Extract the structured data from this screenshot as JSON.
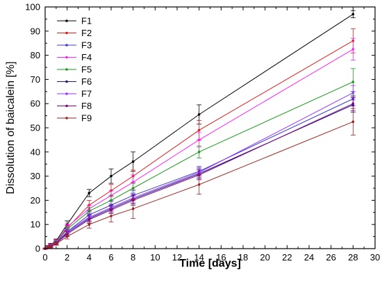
{
  "chart_data": {
    "type": "line",
    "title": "",
    "xlabel": "Time [days]",
    "ylabel": "Dissolution of baicalein [%]",
    "xlim": [
      0,
      30
    ],
    "ylim": [
      0,
      100
    ],
    "xticks": [
      0,
      2,
      4,
      6,
      8,
      10,
      12,
      14,
      16,
      18,
      20,
      22,
      24,
      26,
      28,
      30
    ],
    "yticks": [
      0,
      10,
      20,
      30,
      40,
      50,
      60,
      70,
      80,
      90,
      100
    ],
    "x": [
      0,
      0.25,
      0.5,
      1,
      2,
      4,
      6,
      8,
      14,
      28
    ],
    "grid": false,
    "legend_position": "top-left",
    "series": [
      {
        "name": "F1",
        "color": "#000000",
        "values": [
          0,
          0.8,
          1.6,
          3.2,
          10,
          23,
          30,
          36,
          55.5,
          97
        ],
        "errors": [
          0.2,
          0.5,
          0.6,
          0.8,
          1.5,
          1.5,
          3,
          4,
          4,
          1.5
        ]
      },
      {
        "name": "F2",
        "color": "#e41a1c",
        "values": [
          0,
          0.7,
          1.4,
          2.9,
          8.5,
          18,
          24,
          30,
          49,
          86
        ],
        "errors": [
          0.2,
          0.5,
          0.6,
          0.8,
          1.2,
          2,
          2.5,
          2.5,
          4,
          5
        ]
      },
      {
        "name": "F3",
        "color": "#3a3acc",
        "values": [
          0,
          0.5,
          1.1,
          2.4,
          7,
          14,
          18,
          22,
          32,
          62
        ],
        "errors": [
          0.2,
          0.4,
          0.5,
          0.7,
          1,
          1.5,
          1.5,
          2,
          2,
          3
        ]
      },
      {
        "name": "F4",
        "color": "#ff22ff",
        "values": [
          0,
          0.7,
          1.3,
          2.7,
          9,
          16.5,
          22,
          27.5,
          45,
          82.5
        ],
        "errors": [
          0.2,
          0.5,
          0.6,
          0.8,
          1.2,
          1.5,
          2,
          3,
          3,
          4.5
        ]
      },
      {
        "name": "F5",
        "color": "#1a9a1a",
        "values": [
          0,
          0.6,
          1.2,
          2.6,
          8,
          15.5,
          20,
          25,
          40,
          69
        ],
        "errors": [
          0.2,
          0.4,
          0.5,
          0.7,
          1,
          1.5,
          2,
          2,
          2.5,
          5.5
        ]
      },
      {
        "name": "F6",
        "color": "#1a1a80",
        "values": [
          0,
          0.5,
          1,
          2.3,
          6.5,
          12.5,
          16.5,
          20.5,
          31,
          59.5
        ],
        "errors": [
          0.2,
          0.4,
          0.5,
          0.6,
          1,
          1.5,
          1.5,
          2,
          2,
          3
        ]
      },
      {
        "name": "F7",
        "color": "#9933ff",
        "values": [
          0,
          0.5,
          1.1,
          2.4,
          7,
          13,
          17,
          21,
          31.5,
          64.5
        ],
        "errors": [
          0.2,
          0.4,
          0.5,
          0.6,
          1,
          1.5,
          1.5,
          2,
          2,
          3
        ]
      },
      {
        "name": "F8",
        "color": "#880088",
        "values": [
          0,
          0.5,
          1,
          2.2,
          6,
          12,
          16,
          20,
          30.5,
          60
        ],
        "errors": [
          0.2,
          0.4,
          0.5,
          0.6,
          1,
          1.5,
          1.5,
          2,
          2,
          3
        ]
      },
      {
        "name": "F9",
        "color": "#a02020",
        "values": [
          0,
          0.4,
          0.8,
          2,
          5,
          10,
          13.5,
          16.5,
          26.5,
          52.5
        ],
        "errors": [
          0.2,
          0.4,
          0.5,
          0.6,
          1,
          1.5,
          2.5,
          4,
          4,
          5.5
        ]
      }
    ]
  }
}
